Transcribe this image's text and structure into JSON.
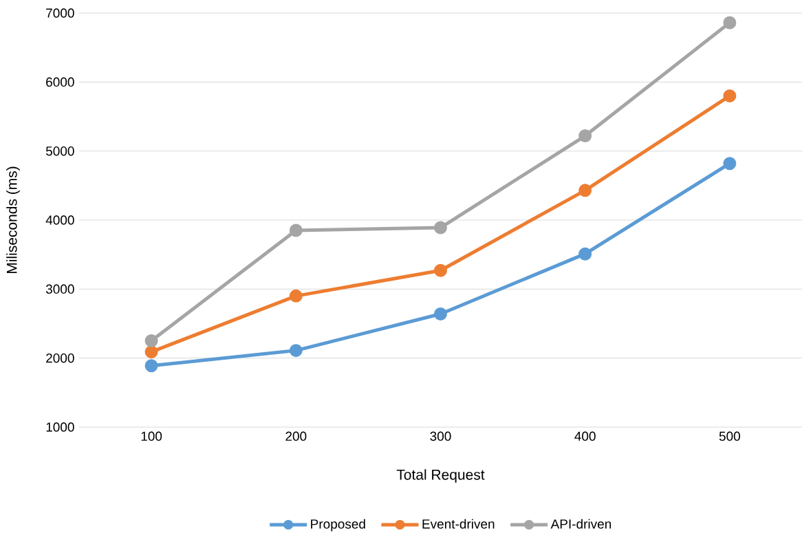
{
  "chart_data": {
    "type": "line",
    "xlabel": "Total Request",
    "ylabel": "Miliseconds (ms)",
    "categories": [
      "100",
      "200",
      "300",
      "400",
      "500"
    ],
    "series": [
      {
        "name": "Proposed",
        "color": "#5b9bd5",
        "values": [
          1890,
          2110,
          2640,
          3510,
          4820
        ]
      },
      {
        "name": "Event-driven",
        "color": "#ed7d31",
        "values": [
          2090,
          2900,
          3270,
          4430,
          5800
        ]
      },
      {
        "name": "API-driven",
        "color": "#a5a5a5",
        "values": [
          2250,
          3850,
          3890,
          5220,
          6860
        ]
      }
    ],
    "ylim": [
      1000,
      7000
    ],
    "yticks": [
      1000,
      2000,
      3000,
      4000,
      5000,
      6000,
      7000
    ],
    "grid": "y",
    "legend": "bottom",
    "marker": "circle",
    "line_style": "solid"
  }
}
